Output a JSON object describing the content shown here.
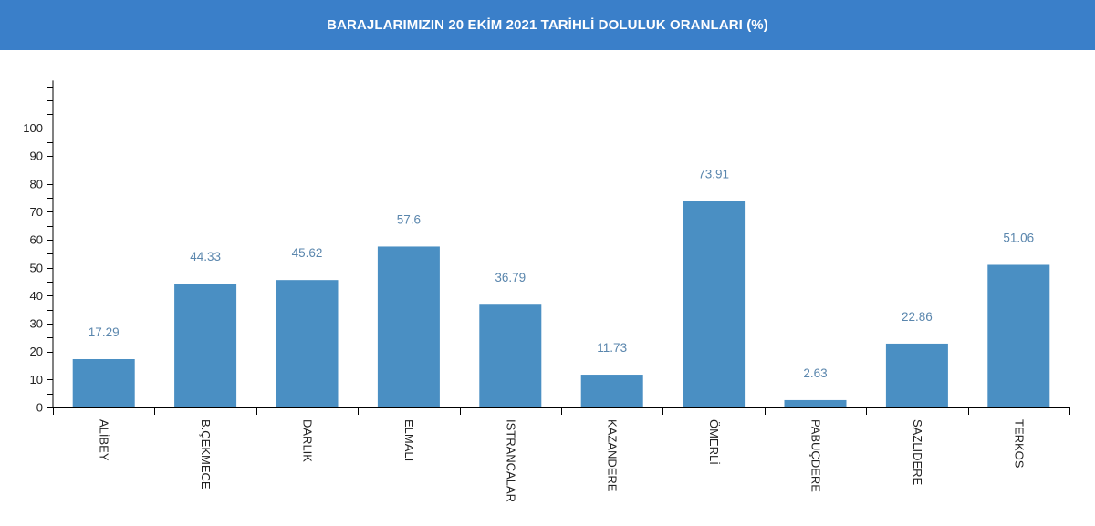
{
  "header": {
    "title": "BARAJLARIMIZIN 20 EKİM 2021 TARİHLİ DOLULUK ORANLARI (%)"
  },
  "colors": {
    "header_bg": "#3a7fc9",
    "bar": "#4a8fc3",
    "value_label": "#5a86ad",
    "axis": "#000000"
  },
  "chart_data": {
    "type": "bar",
    "title": "BARAJLARIMIZIN 20 EKİM 2021 TARİHLİ DOLULUK ORANLARI (%)",
    "categories": [
      "ALİBEY",
      "B.ÇEKMECE",
      "DARLIK",
      "ELMALI",
      "ISTRANCALAR",
      "KAZANDERE",
      "ÖMERLİ",
      "PABUÇDERE",
      "SAZLIDERE",
      "TERKOS"
    ],
    "values": [
      17.29,
      44.33,
      45.62,
      57.6,
      36.79,
      11.73,
      73.91,
      2.63,
      22.86,
      51.06
    ],
    "value_labels": [
      "17.29",
      "44.33",
      "45.62",
      "57.6",
      "36.79",
      "11.73",
      "73.91",
      "2.63",
      "22.86",
      "51.06"
    ],
    "yticks": [
      "0",
      "10",
      "20",
      "30",
      "40",
      "50",
      "60",
      "70",
      "80",
      "90",
      "100"
    ],
    "ylim": [
      0,
      117
    ],
    "xlabel": "",
    "ylabel": "",
    "grid": false,
    "legend": "none",
    "x_label_rotation": "vertical"
  }
}
